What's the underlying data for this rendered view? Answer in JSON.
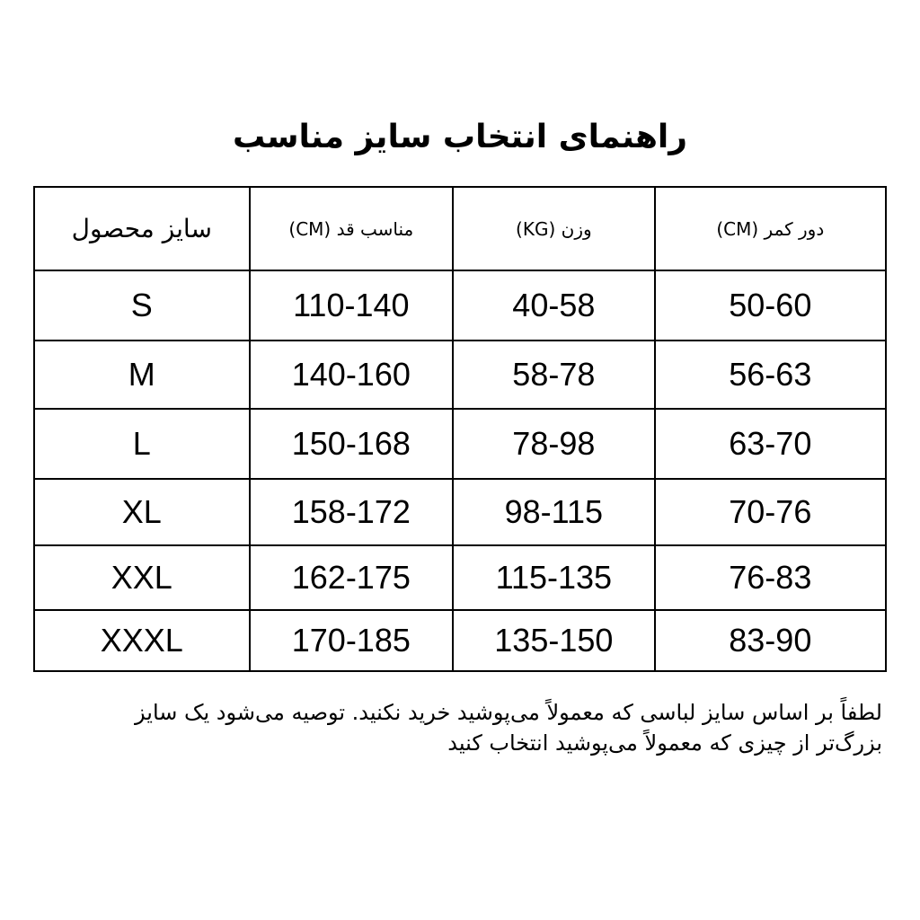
{
  "title": "راهنمای انتخاب سایز مناسب",
  "table": {
    "headers": [
      "سایز محصول",
      "مناسب قد (CM)",
      "وزن (KG)",
      "دور کمر (CM)"
    ],
    "rows": [
      [
        "S",
        "110-140",
        "40-58",
        "50-60"
      ],
      [
        "M",
        "140-160",
        "58-78",
        "56-63"
      ],
      [
        "L",
        "150-168",
        "78-98",
        "63-70"
      ],
      [
        "XL",
        "158-172",
        "98-115",
        "70-76"
      ],
      [
        "XXL",
        "162-175",
        "115-135",
        "76-83"
      ],
      [
        "XXXL",
        "170-185",
        "135-150",
        "83-90"
      ]
    ]
  },
  "note": "لطفاً بر اساس سایز لباسی که معمولاً می‌پوشید خرید نکنید. توصیه می‌شود یک سایز بزرگ‌تر از چیزی که معمولاً می‌پوشید انتخاب کنید"
}
